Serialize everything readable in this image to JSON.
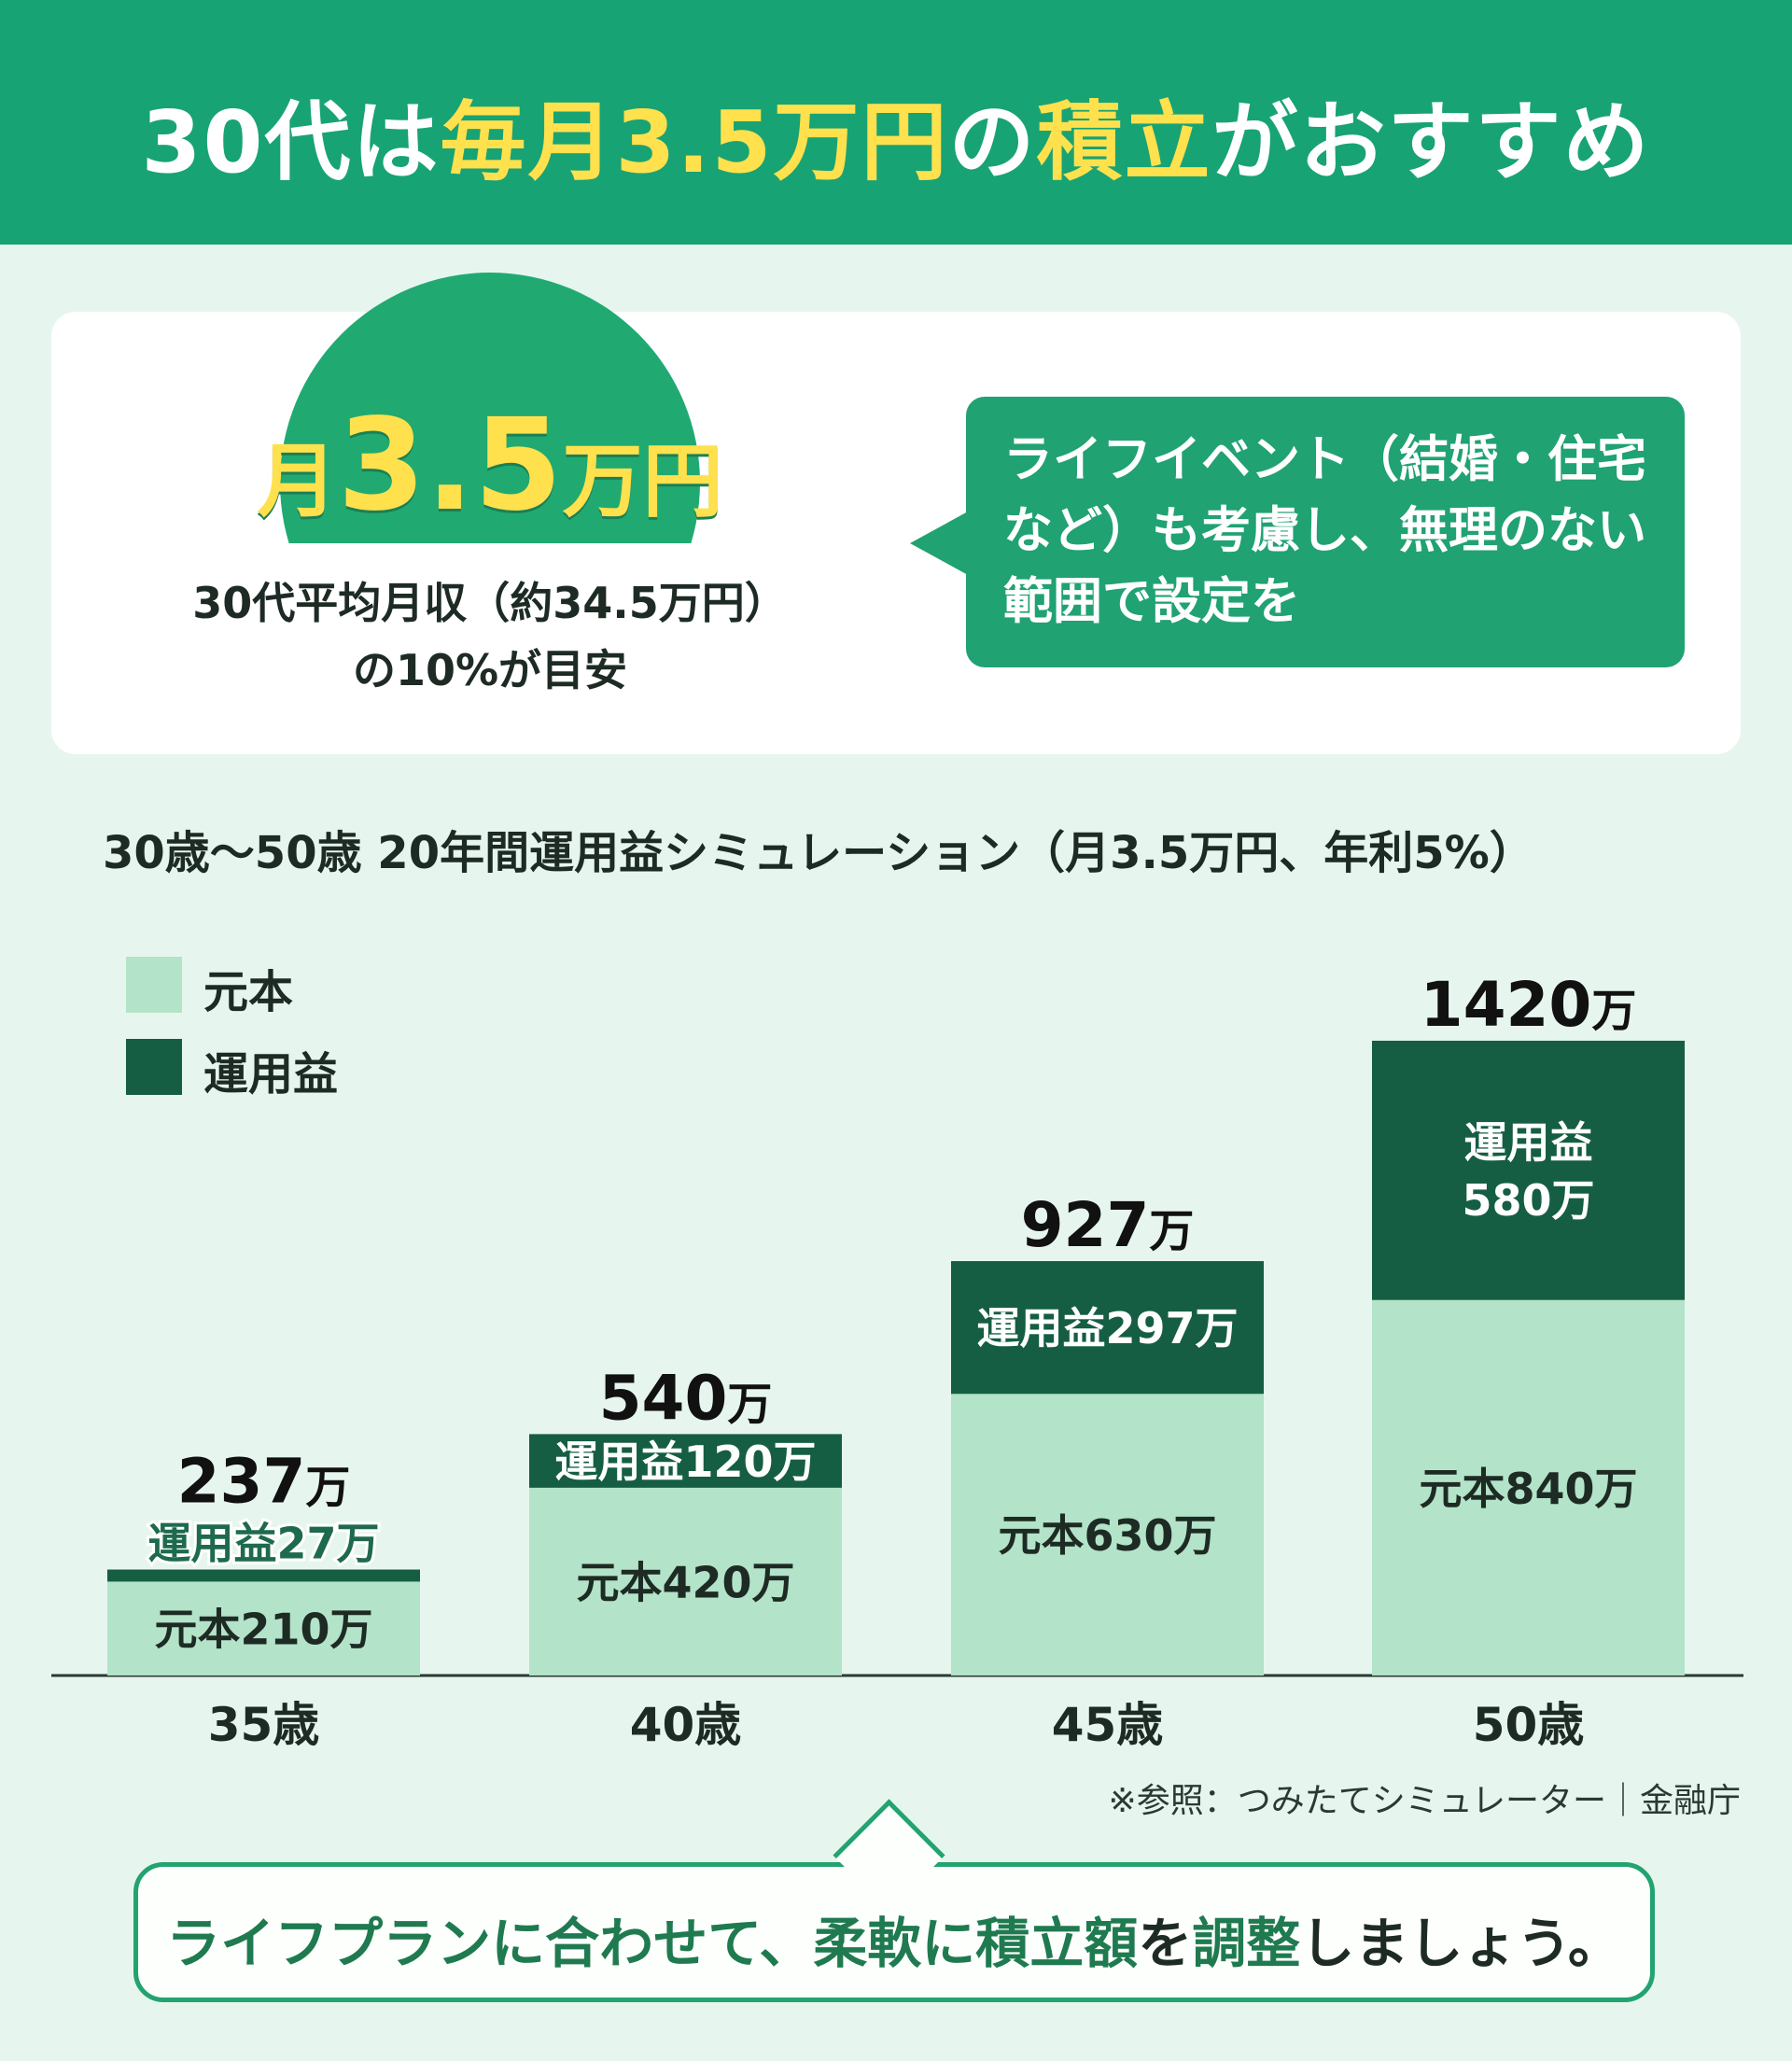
{
  "header": {
    "title_parts": [
      "30代は",
      "毎月3.5万円",
      "の",
      "積立",
      "がおすすめ"
    ]
  },
  "summary": {
    "amount_prefix": "月",
    "amount_number": "3.5",
    "amount_suffix": "万円",
    "note_line1": "30代平均月収（約34.5万円）",
    "note_line2": "の10%が目安",
    "bubble_line1": "ライフイベント（結婚・住宅",
    "bubble_line2": "など）も考慮し、無理のない",
    "bubble_line3": "範囲で設定を"
  },
  "chart_data": {
    "type": "bar",
    "stacked": true,
    "title": "30歳〜50歳 20年間運用益シミュレーション（月3.5万円、年利5%）",
    "categories": [
      "35歳",
      "40歳",
      "45歳",
      "50歳"
    ],
    "series": [
      {
        "name": "元本",
        "values": [
          210,
          420,
          630,
          840
        ],
        "color": "#b3e3c8",
        "labels": [
          "元本210万",
          "元本420万",
          "元本630万",
          "元本840万"
        ]
      },
      {
        "name": "運用益",
        "values": [
          27,
          120,
          297,
          580
        ],
        "color": "#155e43",
        "labels": [
          "運用益27万",
          "運用益120万",
          "運用益297万",
          "運用益\n580万"
        ]
      }
    ],
    "totals": [
      237,
      540,
      927,
      1420
    ],
    "total_labels": [
      {
        "num": "237",
        "unit": "万"
      },
      {
        "num": "540",
        "unit": "万"
      },
      {
        "num": "927",
        "unit": "万"
      },
      {
        "num": "1420",
        "unit": "万"
      }
    ],
    "legend": {
      "position": "top-left"
    },
    "grid": false
  },
  "source": "※参照：つみたてシミュレーター｜金融庁",
  "footer": {
    "parts": [
      "ライフプランに合わせて、柔軟に",
      "積立額",
      "を",
      "調整",
      "しましょう。"
    ]
  }
}
